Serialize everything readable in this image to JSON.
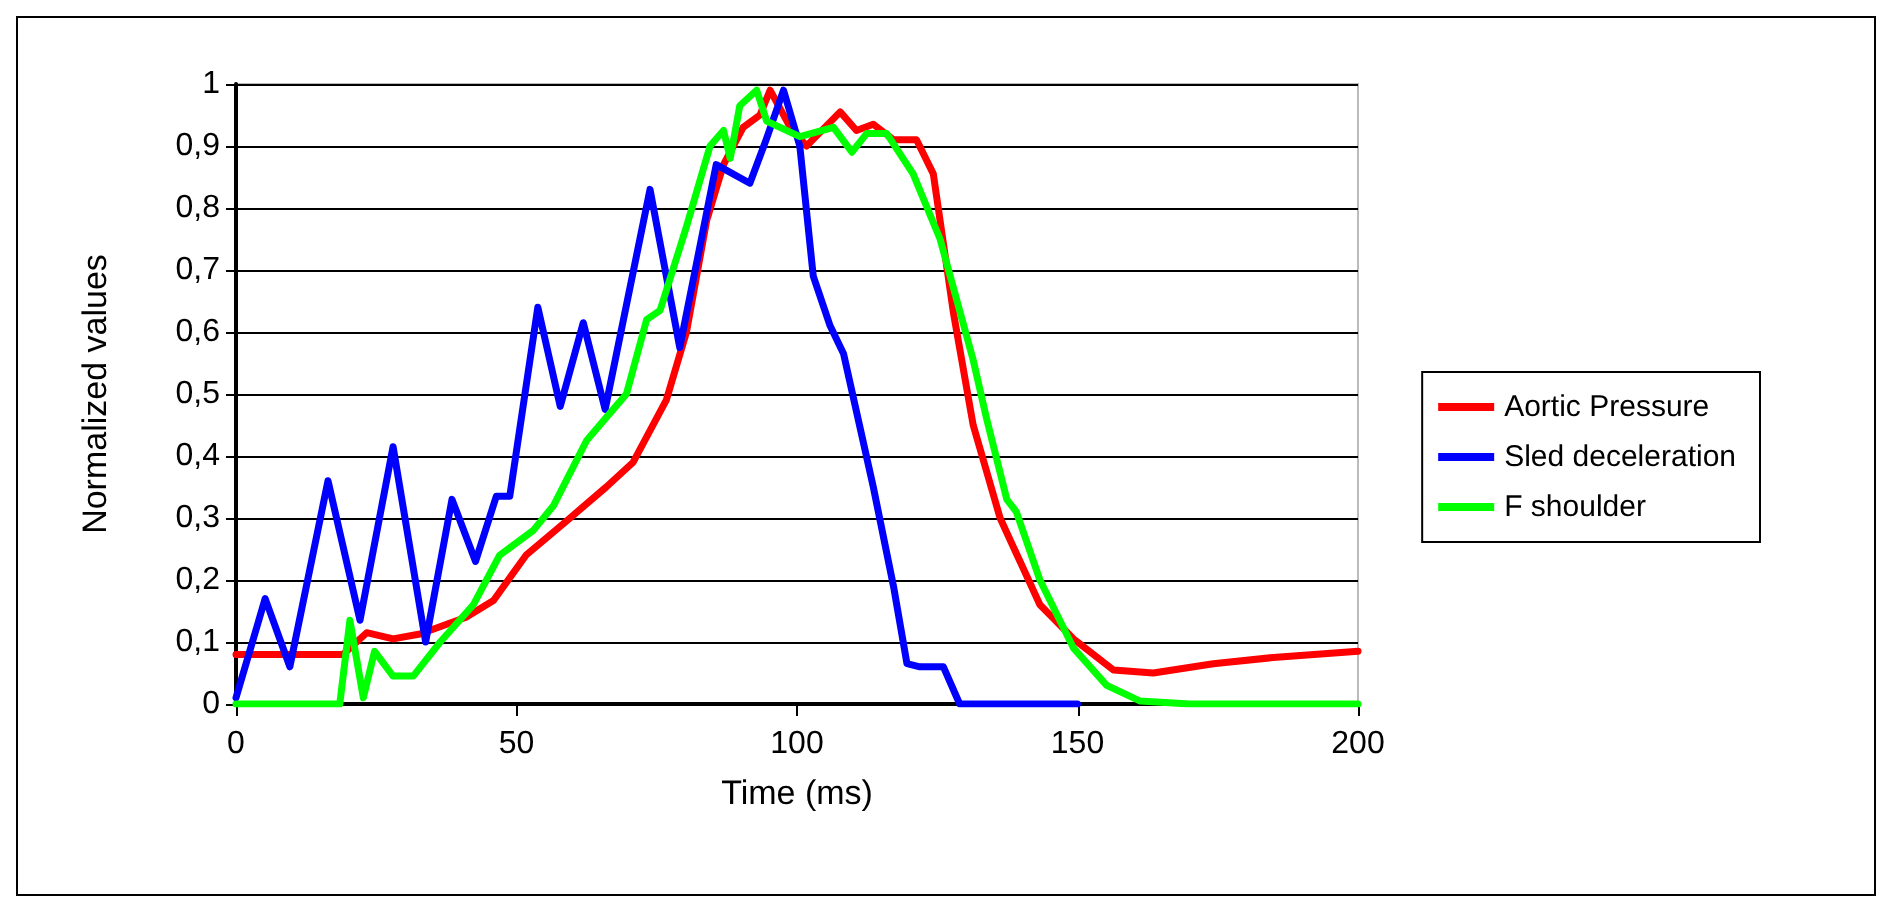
{
  "chart_data": {
    "type": "line",
    "xlabel": "Time (ms)",
    "ylabel": "Normalized values",
    "xlim": [
      0,
      200
    ],
    "xticks": [
      0,
      50,
      100,
      150,
      200
    ],
    "ylim": [
      0,
      1
    ],
    "yticks": [
      {
        "value": 0,
        "label": "0"
      },
      {
        "value": 0.1,
        "label": "0,1"
      },
      {
        "value": 0.2,
        "label": "0,2"
      },
      {
        "value": 0.3,
        "label": "0,3"
      },
      {
        "value": 0.4,
        "label": "0,4"
      },
      {
        "value": 0.5,
        "label": "0,5"
      },
      {
        "value": 0.6,
        "label": "0,6"
      },
      {
        "value": 0.7,
        "label": "0,7"
      },
      {
        "value": 0.8,
        "label": "0,8"
      },
      {
        "value": 0.9,
        "label": "0,9"
      },
      {
        "value": 1,
        "label": "1"
      }
    ],
    "grid": "y",
    "legend": "right",
    "marker": "none",
    "line_style": "solid",
    "series": [
      {
        "name": "Aortic Pressure",
        "color": "#ff0000",
        "x": [
          0,
          19.1,
          23.3,
          28,
          32.8,
          41,
          45.9,
          51.7,
          58.9,
          66,
          70.8,
          76.7,
          80.3,
          83.9,
          86.9,
          90.4,
          93.4,
          95.2,
          98.8,
          101.7,
          107.7,
          110.6,
          113.6,
          117.2,
          121.3,
          124.3,
          127.9,
          131.4,
          136.2,
          143.3,
          149.3,
          156.4,
          163.5,
          174.2,
          184.9,
          200
        ],
        "values": [
          0.08,
          0.08,
          0.115,
          0.105,
          0.113,
          0.14,
          0.167,
          0.24,
          0.295,
          0.35,
          0.39,
          0.49,
          0.6,
          0.78,
          0.87,
          0.93,
          0.95,
          0.99,
          0.93,
          0.9,
          0.955,
          0.925,
          0.935,
          0.91,
          0.91,
          0.855,
          0.63,
          0.45,
          0.3,
          0.16,
          0.105,
          0.055,
          0.05,
          0.065,
          0.075,
          0.085
        ]
      },
      {
        "name": "Sled deceleration",
        "color": "#0000ff",
        "x": [
          0,
          5.2,
          9.6,
          16.4,
          22.1,
          28,
          33.8,
          38.5,
          42.7,
          46.4,
          48.8,
          53.8,
          57.8,
          61.9,
          65.8,
          73.8,
          79.1,
          85.6,
          91.6,
          94.5,
          97.6,
          100.5,
          102.9,
          105.9,
          108.3,
          113.6,
          117.2,
          119.6,
          121.9,
          126.1,
          129,
          140,
          150
        ],
        "values": [
          0.01,
          0.17,
          0.06,
          0.36,
          0.135,
          0.415,
          0.1,
          0.33,
          0.23,
          0.335,
          0.335,
          0.64,
          0.48,
          0.615,
          0.475,
          0.83,
          0.575,
          0.87,
          0.84,
          0.91,
          0.99,
          0.9,
          0.69,
          0.61,
          0.565,
          0.35,
          0.19,
          0.065,
          0.06,
          0.06,
          0,
          0,
          0
        ]
      },
      {
        "name": "F shoulder",
        "color": "#00ff00",
        "x": [
          0,
          18.5,
          20.3,
          22.7,
          24.7,
          28,
          31.6,
          36.4,
          42.3,
          47,
          53,
          56.6,
          62.5,
          67.7,
          69.6,
          73.2,
          75.6,
          80.3,
          84.5,
          86.9,
          88.1,
          89.8,
          92.8,
          94.6,
          100.5,
          106.5,
          109.8,
          112.4,
          116,
          120.7,
          125.5,
          131.4,
          133.8,
          137.4,
          139.1,
          143.3,
          149.3,
          155.2,
          161.1,
          170,
          200
        ],
        "values": [
          0,
          0,
          0.135,
          0.01,
          0.085,
          0.045,
          0.045,
          0.1,
          0.16,
          0.24,
          0.28,
          0.32,
          0.425,
          0.48,
          0.5,
          0.62,
          0.635,
          0.77,
          0.9,
          0.925,
          0.88,
          0.965,
          0.99,
          0.94,
          0.915,
          0.93,
          0.89,
          0.92,
          0.92,
          0.855,
          0.75,
          0.555,
          0.46,
          0.33,
          0.31,
          0.2,
          0.09,
          0.03,
          0.005,
          0,
          0
        ]
      }
    ]
  }
}
